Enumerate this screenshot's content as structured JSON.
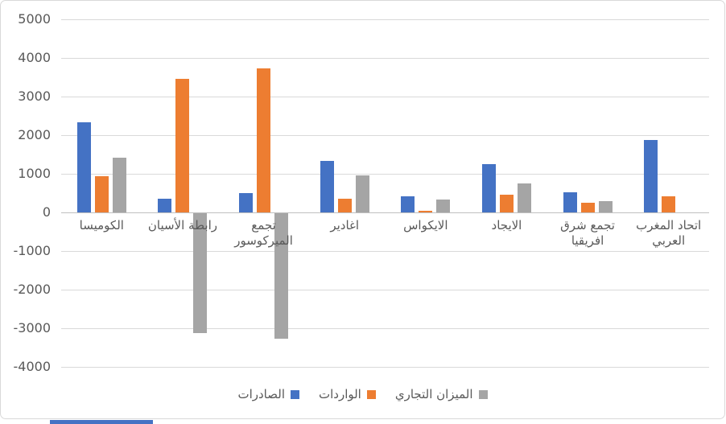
{
  "chart_data": {
    "type": "bar",
    "title": "",
    "xlabel": "",
    "ylabel": "",
    "ylim": [
      -4000,
      5000
    ],
    "y_tick_step": 1000,
    "y_ticks": [
      "5000",
      "4000",
      "3000",
      "2000",
      "1000",
      "0",
      "-1000",
      "-2000",
      "-3000",
      "-4000"
    ],
    "grid": true,
    "legend_position": "bottom-center",
    "categories": [
      [
        "الكوميسا"
      ],
      [
        "رابطة الأسيان"
      ],
      [
        "تجمع",
        "الميركوسور"
      ],
      [
        "اغادير"
      ],
      [
        "الايكواس"
      ],
      [
        "الايجاد"
      ],
      [
        "تجمع شرق",
        "افريقيا"
      ],
      [
        "اتحاد المغرب",
        "العربي"
      ]
    ],
    "series": [
      {
        "name": "الصادرات",
        "color": "#4472C4",
        "values": [
          2340,
          360,
          500,
          1330,
          420,
          1240,
          530,
          1870
        ]
      },
      {
        "name": "الواردات",
        "color": "#ED7D31",
        "values": [
          930,
          3450,
          3720,
          360,
          50,
          460,
          240,
          420
        ]
      },
      {
        "name": "الميزان التجاري",
        "color": "#A5A5A5",
        "values": [
          1410,
          -3100,
          -3260,
          950,
          340,
          740,
          300,
          null
        ]
      }
    ]
  },
  "colors": {
    "background": "#FFFFFF",
    "frame_border": "#D9D9D9",
    "gridline": "#D9D9D9",
    "zero_line": "#BFBFBF",
    "axis_text": "#595959",
    "cell_strip": "#4472C4"
  }
}
